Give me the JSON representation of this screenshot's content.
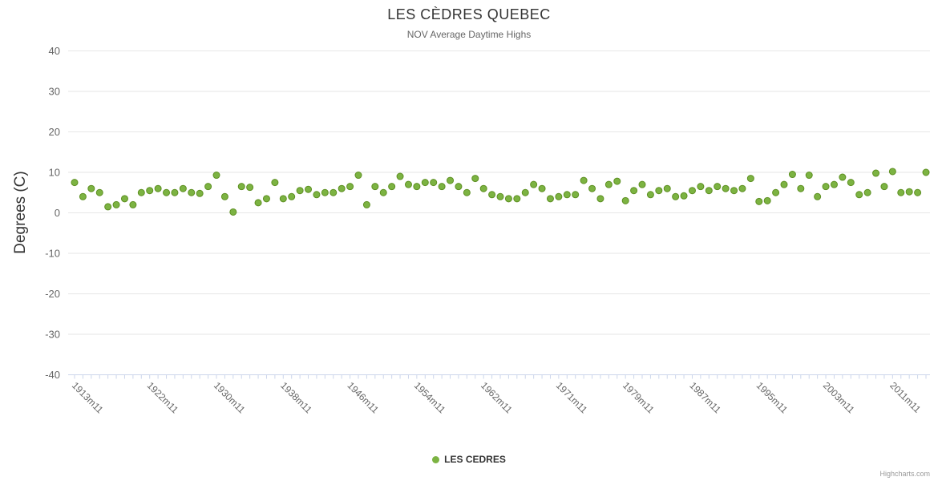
{
  "title": "LES CÈDRES QUEBEC",
  "subtitle": "NOV Average Daytime Highs",
  "legend": {
    "label": "LES CEDRES"
  },
  "credits": "Highcharts.com",
  "chart_data": {
    "type": "scatter",
    "title": "LES CÈDRES QUEBEC",
    "subtitle": "NOV Average Daytime Highs",
    "ylabel": "Degrees (C)",
    "ylim": [
      -40,
      40
    ],
    "ytick_interval": 10,
    "grid": true,
    "legend_position": "bottom",
    "color": "#7cb342",
    "marker_stroke": "#5d8f21",
    "grid_color": "#e6e6e6",
    "axis_line_color": "#ccd6eb",
    "label_color": "#666666",
    "x_start_year": 1913,
    "x_unit_suffix": "m11",
    "x_tick_years": [
      1913,
      1922,
      1930,
      1938,
      1946,
      1954,
      1962,
      1971,
      1979,
      1987,
      1995,
      2003,
      2011
    ],
    "x_tick_labels": [
      "1913m11",
      "1922m11",
      "1930m11",
      "1938m11",
      "1946m11",
      "1954m11",
      "1962m11",
      "1971m11",
      "1979m11",
      "1987m11",
      "1995m11",
      "2003m11",
      "2011m11"
    ],
    "ytick_labels": [
      "40",
      "30",
      "20",
      "10",
      "0",
      "-10",
      "-20",
      "-30",
      "-40"
    ],
    "series_name": "LES CEDRES",
    "values": [
      7.5,
      4,
      6,
      5,
      1.5,
      2,
      3.5,
      2,
      5,
      5.5,
      6,
      5,
      5,
      6,
      5,
      4.8,
      6.5,
      9.3,
      4,
      0.2,
      6.5,
      6.3,
      2.5,
      3.5,
      7.5,
      3.5,
      4,
      5.5,
      5.8,
      4.5,
      5,
      5,
      6,
      6.5,
      9.3,
      2,
      6.5,
      5,
      6.5,
      9,
      7,
      6.5,
      7.5,
      7.5,
      6.5,
      8,
      6.5,
      5,
      8.5,
      6,
      4.5,
      4,
      3.5,
      3.5,
      5,
      7,
      6,
      3.5,
      4,
      4.5,
      4.5,
      8,
      6,
      3.5,
      7,
      7.8,
      3,
      5.5,
      7,
      4.5,
      5.5,
      6,
      4,
      4.2,
      5.5,
      6.5,
      5.5,
      6.5,
      6,
      5.5,
      6,
      8.5,
      2.8,
      3,
      5,
      7,
      9.5,
      6,
      9.3,
      4,
      6.5,
      7,
      8.8,
      7.5,
      4.5,
      5,
      9.8,
      6.5,
      10.2,
      5,
      5.2,
      5,
      10
    ]
  }
}
